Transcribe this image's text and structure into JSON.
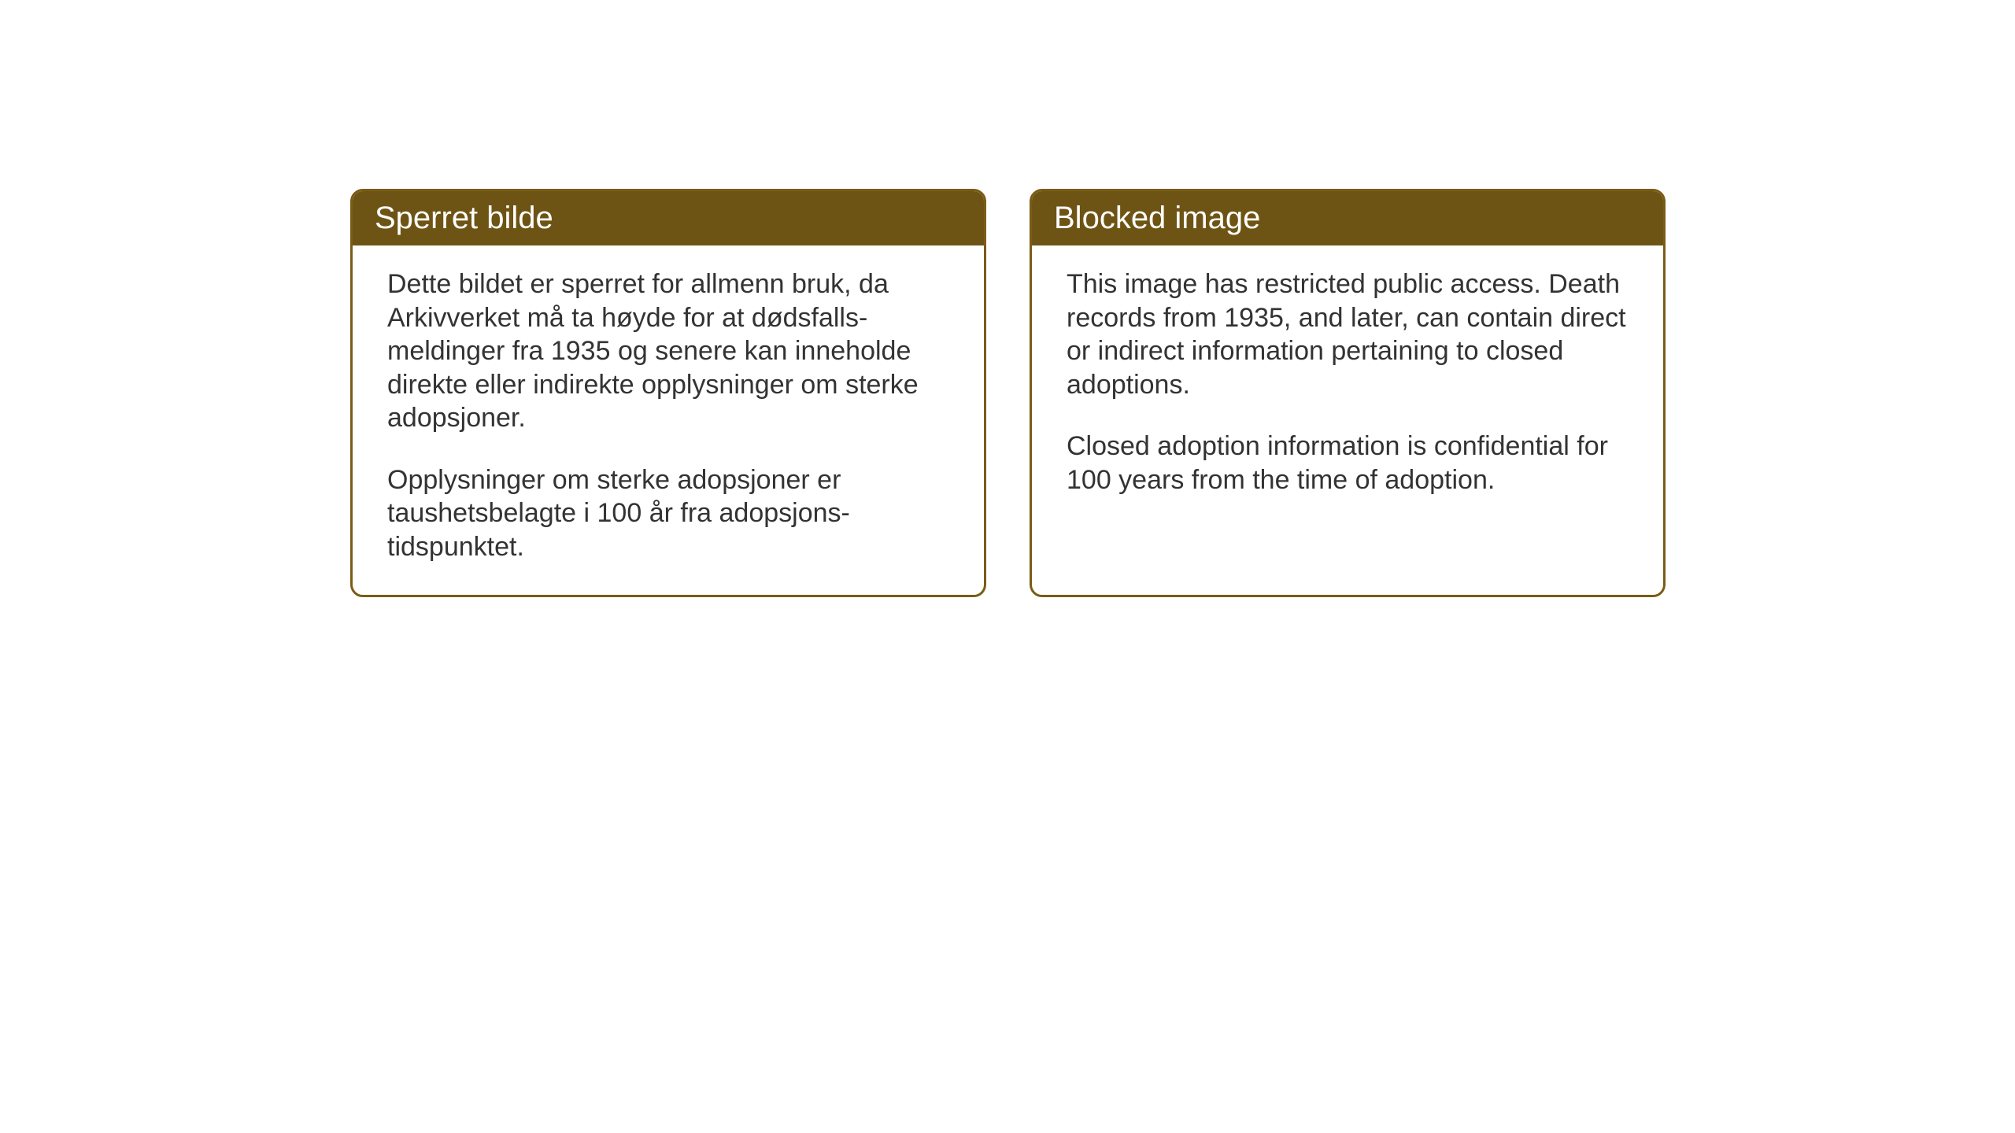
{
  "page": {
    "background_color": "#ffffff"
  },
  "cards": {
    "header_bg_color": "#6e5414",
    "header_text_color": "#ffffff",
    "border_color": "#7a5c15",
    "body_text_color": "#333333",
    "card_bg_color": "#ffffff",
    "header_fontsize": 40,
    "body_fontsize": 34,
    "border_width": 3,
    "border_radius": 16,
    "left": {
      "title": "Sperret bilde",
      "paragraph1": "Dette bildet er sperret for allmenn bruk, da Arkivverket må ta høyde for at dødsfalls-meldinger fra 1935 og senere kan inneholde direkte eller indirekte opplysninger om sterke adopsjoner.",
      "paragraph2": "Opplysninger om sterke adopsjoner er taushetsbelagte i 100 år fra adopsjons-tidspunktet."
    },
    "right": {
      "title": "Blocked image",
      "paragraph1": "This image has restricted public access. Death records from 1935, and later, can contain direct or indirect information pertaining to closed adoptions.",
      "paragraph2": "Closed adoption information is confidential for 100 years from the time of adoption."
    }
  }
}
